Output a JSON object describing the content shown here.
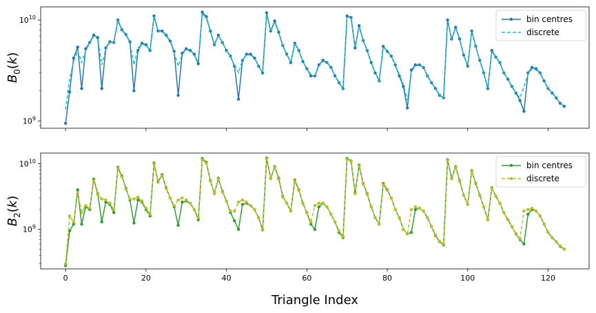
{
  "chart_data": [
    {
      "type": "line",
      "ylabel": "B_0(k)",
      "yscale": "log",
      "ylim": [
        850000000.0,
        13500000000.0
      ],
      "y_ticks": [
        {
          "value": 1000000000.0,
          "label": "10^9"
        },
        {
          "value": 10000000000.0,
          "label": "10^10"
        }
      ],
      "xlim": [
        -6.2,
        130.2
      ],
      "legend_position": "top-right",
      "series": [
        {
          "name": "bin centres",
          "color": "#1f77b4",
          "style": "solid-marker",
          "values": [
            950000000.0,
            1950000000.0,
            4200000000.0,
            5400000000.0,
            2100000000.0,
            5200000000.0,
            6000000000.0,
            7100000000.0,
            6700000000.0,
            2100000000.0,
            5300000000.0,
            6100000000.0,
            6000000000.0,
            10000000000.0,
            8000000000.0,
            7200000000.0,
            6100000000.0,
            2000000000.0,
            5000000000.0,
            5900000000.0,
            5700000000.0,
            5000000000.0,
            11000000000.0,
            7800000000.0,
            7800000000.0,
            7100000000.0,
            6200000000.0,
            4900000000.0,
            1800000000.0,
            4700000000.0,
            5200000000.0,
            5000000000.0,
            4600000000.0,
            3700000000.0,
            12000000000.0,
            10800000000.0,
            7800000000.0,
            5700000000.0,
            7100000000.0,
            6000000000.0,
            5000000000.0,
            4400000000.0,
            3500000000.0,
            1650000000.0,
            4000000000.0,
            4600000000.0,
            4600000000.0,
            4200000000.0,
            3500000000.0,
            3000000000.0,
            11800000000.0,
            7800000000.0,
            9800000000.0,
            7600000000.0,
            5600000000.0,
            4600000000.0,
            3800000000.0,
            5900000000.0,
            5000000000.0,
            3900000000.0,
            3300000000.0,
            2800000000.0,
            2800000000.0,
            3600000000.0,
            4000000000.0,
            3800000000.0,
            3400000000.0,
            2800000000.0,
            2400000000.0,
            2100000000.0,
            11000000000.0,
            10600000000.0,
            5300000000.0,
            8800000000.0,
            6300000000.0,
            5000000000.0,
            3800000000.0,
            3000000000.0,
            2500000000.0,
            5500000000.0,
            4900000000.0,
            4400000000.0,
            3600000000.0,
            2800000000.0,
            2200000000.0,
            1350000000.0,
            3200000000.0,
            3600000000.0,
            3600000000.0,
            3400000000.0,
            2800000000.0,
            2400000000.0,
            2100000000.0,
            1800000000.0,
            1700000000.0,
            10000000000.0,
            6500000000.0,
            8500000000.0,
            6500000000.0,
            4500000000.0,
            3500000000.0,
            7800000000.0,
            5500000000.0,
            4000000000.0,
            3000000000.0,
            2100000000.0,
            5000000000.0,
            4300000000.0,
            3800000000.0,
            3000000000.0,
            2600000000.0,
            2200000000.0,
            1900000000.0,
            1600000000.0,
            1250000000.0,
            3000000000.0,
            3400000000.0,
            3300000000.0,
            3000000000.0,
            2500000000.0,
            2100000000.0,
            1900000000.0,
            1700000000.0,
            1500000000.0,
            1400000000.0
          ]
        },
        {
          "name": "discrete",
          "color": "#17becf",
          "style": "dashed",
          "values": [
            1300000000.0,
            2600000000.0,
            3900000000.0,
            5000000000.0,
            3800000000.0,
            5000000000.0,
            5900000000.0,
            6900000000.0,
            6500000000.0,
            3600000000.0,
            5200000000.0,
            6000000000.0,
            6000000000.0,
            9800000000.0,
            7900000000.0,
            7100000000.0,
            6000000000.0,
            3600000000.0,
            5300000000.0,
            5800000000.0,
            5600000000.0,
            5000000000.0,
            10800000000.0,
            7700000000.0,
            7700000000.0,
            7000000000.0,
            6100000000.0,
            4800000000.0,
            3500000000.0,
            4600000000.0,
            5100000000.0,
            5000000000.0,
            4500000000.0,
            3900000000.0,
            11600000000.0,
            10500000000.0,
            7700000000.0,
            5700000000.0,
            7000000000.0,
            6000000000.0,
            5000000000.0,
            4300000000.0,
            3600000000.0,
            3000000000.0,
            4000000000.0,
            4500000000.0,
            4500000000.0,
            4200000000.0,
            3500000000.0,
            3000000000.0,
            11500000000.0,
            7700000000.0,
            9600000000.0,
            7500000000.0,
            5500000000.0,
            4600000000.0,
            3800000000.0,
            5800000000.0,
            5000000000.0,
            3900000000.0,
            3300000000.0,
            2900000000.0,
            2800000000.0,
            3500000000.0,
            3900000000.0,
            3800000000.0,
            3400000000.0,
            2800000000.0,
            2400000000.0,
            2100000000.0,
            10800000000.0,
            10400000000.0,
            5300000000.0,
            8700000000.0,
            6200000000.0,
            5000000000.0,
            3800000000.0,
            3000000000.0,
            2500000000.0,
            5400000000.0,
            4900000000.0,
            4400000000.0,
            3600000000.0,
            2900000000.0,
            2300000000.0,
            1600000000.0,
            3100000000.0,
            3500000000.0,
            3600000000.0,
            3400000000.0,
            2800000000.0,
            2400000000.0,
            2100000000.0,
            1800000000.0,
            1700000000.0,
            9800000000.0,
            6500000000.0,
            8400000000.0,
            6400000000.0,
            4500000000.0,
            3500000000.0,
            7700000000.0,
            5500000000.0,
            4000000000.0,
            3000000000.0,
            2100000000.0,
            4900000000.0,
            4300000000.0,
            3800000000.0,
            3000000000.0,
            2600000000.0,
            2200000000.0,
            1900000000.0,
            1700000000.0,
            2200000000.0,
            2900000000.0,
            3300000000.0,
            3200000000.0,
            3000000000.0,
            2500000000.0,
            2100000000.0,
            1900000000.0,
            1700000000.0,
            1500000000.0,
            1400000000.0
          ]
        }
      ]
    },
    {
      "type": "line",
      "ylabel": "B_2(k)",
      "yscale": "log",
      "ylim": [
        250000000.0,
        14500000000.0
      ],
      "y_ticks": [
        {
          "value": 1000000000.0,
          "label": "10^9"
        },
        {
          "value": 10000000000.0,
          "label": "10^10"
        }
      ],
      "xlim": [
        -6.2,
        130.2
      ],
      "xlabel": "Triangle Index",
      "x_ticks": [
        0,
        20,
        40,
        60,
        80,
        100,
        120
      ],
      "legend_position": "top-right",
      "series": [
        {
          "name": "bin centres",
          "color": "#2ca02c",
          "style": "solid-marker",
          "values": [
            280000000.0,
            950000000.0,
            1200000000.0,
            4000000000.0,
            1200000000.0,
            2200000000.0,
            2000000000.0,
            5800000000.0,
            3500000000.0,
            1300000000.0,
            2600000000.0,
            2400000000.0,
            1800000000.0,
            8800000000.0,
            6500000000.0,
            4200000000.0,
            2800000000.0,
            1250000000.0,
            2800000000.0,
            2600000000.0,
            2000000000.0,
            1600000000.0,
            10200000000.0,
            5300000000.0,
            6800000000.0,
            4300000000.0,
            3000000000.0,
            2200000000.0,
            1150000000.0,
            2600000000.0,
            2700000000.0,
            2500000000.0,
            2000000000.0,
            1400000000.0,
            12000000000.0,
            10500000000.0,
            5500000000.0,
            3500000000.0,
            6000000000.0,
            3800000000.0,
            2700000000.0,
            1800000000.0,
            1350000000.0,
            1000000000.0,
            2400000000.0,
            2500000000.0,
            2300000000.0,
            2000000000.0,
            1500000000.0,
            980000000.0,
            12200000000.0,
            6000000000.0,
            9000000000.0,
            6000000000.0,
            3200000000.0,
            2500000000.0,
            1900000000.0,
            5600000000.0,
            4000000000.0,
            2500000000.0,
            1800000000.0,
            1200000000.0,
            1000000000.0,
            2200000000.0,
            2500000000.0,
            2200000000.0,
            1700000000.0,
            1300000000.0,
            900000000.0,
            750000000.0,
            12000000000.0,
            11000000000.0,
            3600000000.0,
            9500000000.0,
            5000000000.0,
            3500000000.0,
            2200000000.0,
            1500000000.0,
            1200000000.0,
            5000000000.0,
            4000000000.0,
            3000000000.0,
            2000000000.0,
            1500000000.0,
            1000000000.0,
            850000000.0,
            900000000.0,
            2000000000.0,
            2100000000.0,
            1900000000.0,
            1500000000.0,
            1100000000.0,
            800000000.0,
            650000000.0,
            580000000.0,
            11500000000.0,
            6000000000.0,
            9000000000.0,
            5500000000.0,
            3300000000.0,
            2400000000.0,
            7800000000.0,
            5000000000.0,
            3300000000.0,
            2200000000.0,
            1400000000.0,
            4300000000.0,
            3200000000.0,
            2500000000.0,
            1800000000.0,
            1400000000.0,
            1100000000.0,
            850000000.0,
            700000000.0,
            600000000.0,
            1700000000.0,
            2000000000.0,
            1900000000.0,
            1600000000.0,
            1200000000.0,
            900000000.0,
            750000000.0,
            650000000.0,
            550000000.0,
            500000000.0
          ]
        },
        {
          "name": "discrete",
          "color": "#bcbd22",
          "style": "dashed-marker",
          "values": [
            300000000.0,
            1600000000.0,
            1300000000.0,
            3500000000.0,
            1800000000.0,
            2300000000.0,
            2100000000.0,
            5500000000.0,
            3400000000.0,
            2900000000.0,
            2800000000.0,
            2500000000.0,
            2000000000.0,
            8500000000.0,
            6300000000.0,
            4100000000.0,
            2900000000.0,
            2900000000.0,
            3100000000.0,
            2700000000.0,
            2100000000.0,
            1700000000.0,
            9800000000.0,
            5200000000.0,
            6600000000.0,
            4200000000.0,
            3000000000.0,
            2300000000.0,
            2800000000.0,
            3000000000.0,
            2800000000.0,
            2500000000.0,
            2000000000.0,
            1500000000.0,
            11500000000.0,
            10200000000.0,
            5400000000.0,
            3500000000.0,
            5800000000.0,
            3700000000.0,
            2700000000.0,
            1900000000.0,
            1900000000.0,
            2600000000.0,
            2800000000.0,
            2600000000.0,
            2300000000.0,
            2000000000.0,
            1500000000.0,
            1000000000.0,
            11800000000.0,
            5900000000.0,
            8800000000.0,
            5800000000.0,
            3100000000.0,
            2500000000.0,
            1900000000.0,
            5400000000.0,
            3900000000.0,
            2500000000.0,
            1800000000.0,
            1300000000.0,
            2300000000.0,
            2500000000.0,
            2500000000.0,
            2200000000.0,
            1700000000.0,
            1300000000.0,
            950000000.0,
            780000000.0,
            11600000000.0,
            10800000000.0,
            3500000000.0,
            9200000000.0,
            4900000000.0,
            3400000000.0,
            2200000000.0,
            1500000000.0,
            1200000000.0,
            4800000000.0,
            3900000000.0,
            3000000000.0,
            2000000000.0,
            1500000000.0,
            1000000000.0,
            850000000.0,
            2000000000.0,
            2200000000.0,
            2100000000.0,
            1900000000.0,
            1500000000.0,
            1100000000.0,
            820000000.0,
            660000000.0,
            600000000.0,
            11200000000.0,
            5900000000.0,
            8800000000.0,
            5400000000.0,
            3300000000.0,
            2400000000.0,
            7600000000.0,
            4900000000.0,
            3300000000.0,
            2200000000.0,
            1400000000.0,
            4200000000.0,
            3200000000.0,
            2500000000.0,
            1800000000.0,
            1400000000.0,
            1100000000.0,
            860000000.0,
            720000000.0,
            1900000000.0,
            2000000000.0,
            2100000000.0,
            1900000000.0,
            1600000000.0,
            1200000000.0,
            900000000.0,
            750000000.0,
            650000000.0,
            560000000.0,
            500000000.0
          ]
        }
      ]
    }
  ]
}
